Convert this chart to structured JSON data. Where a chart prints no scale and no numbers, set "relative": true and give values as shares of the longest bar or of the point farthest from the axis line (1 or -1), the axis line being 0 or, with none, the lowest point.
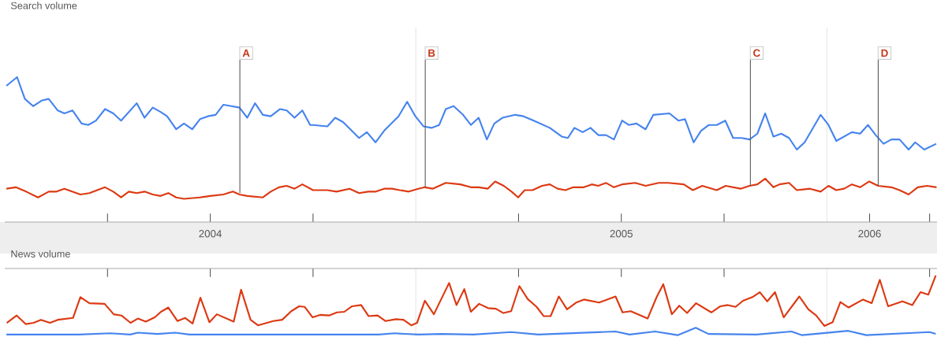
{
  "chart_data": [
    {
      "type": "line",
      "relative": true,
      "title": "Search volume",
      "tick_labels": "x",
      "xlim": [
        2004.0,
        2006.268
      ],
      "xticks": [
        {
          "value": 2004.25,
          "label": null
        },
        {
          "value": 2004.5,
          "label": "2004"
        },
        {
          "value": 2004.75,
          "label": null
        },
        {
          "value": 2005.25,
          "label": null
        },
        {
          "value": 2005.5,
          "label": "2005"
        },
        {
          "value": 2005.75,
          "label": null
        },
        {
          "value": 2006.104,
          "label": "2006"
        },
        {
          "value": 2006.25,
          "label": null
        }
      ],
      "ref_lines": [
        {
          "axis": "x",
          "value": 2005,
          "color": "#cccccc"
        },
        {
          "axis": "x",
          "value": 2006,
          "color": "#cccccc"
        }
      ],
      "annotations": [
        {
          "text": "A",
          "x": 2004.572,
          "y": 0.2
        },
        {
          "text": "B",
          "x": 2005.023,
          "y": 0.24
        },
        {
          "text": "C",
          "x": 2005.814,
          "y": 0.25
        },
        {
          "text": "D",
          "x": 2006.125,
          "y": 0.25
        }
      ],
      "series": [
        {
          "color": "#4684ee",
          "x": [
            2004.004,
            2004.03,
            2004.049,
            2004.069,
            2004.091,
            2004.107,
            2004.129,
            2004.145,
            2004.165,
            2004.187,
            2004.203,
            2004.222,
            2004.244,
            2004.264,
            2004.283,
            2004.321,
            2004.34,
            2004.36,
            2004.379,
            2004.395,
            2004.417,
            2004.436,
            2004.456,
            2004.475,
            2004.494,
            2004.513,
            2004.532,
            2004.551,
            2004.571,
            2004.59,
            2004.609,
            2004.628,
            2004.647,
            2004.67,
            2004.686,
            2004.705,
            2004.724,
            2004.743,
            2004.75,
            2004.785,
            2004.804,
            2004.823,
            2004.862,
            2004.881,
            2004.902,
            2004.923,
            2004.958,
            2004.979,
            2004.999,
            2005.019,
            2005.038,
            2005.057,
            2005.073,
            2005.092,
            2005.115,
            2005.134,
            2005.153,
            2005.173,
            2005.191,
            2005.211,
            2005.242,
            2005.262,
            2005.287,
            2005.326,
            2005.355,
            2005.37,
            2005.386,
            2005.406,
            2005.425,
            2005.444,
            2005.463,
            2005.482,
            2005.502,
            2005.518,
            2005.537,
            2005.559,
            2005.578,
            2005.617,
            2005.639,
            2005.655,
            2005.676,
            2005.694,
            2005.713,
            2005.732,
            2005.753,
            2005.772,
            2005.793,
            2005.812,
            2005.831,
            2005.85,
            2005.87,
            2005.889,
            2005.908,
            2005.927,
            2005.946,
            2005.985,
            2006.004,
            2006.023,
            2006.042,
            2006.061,
            2006.081,
            2006.1,
            2006.119,
            2006.138,
            2006.157,
            2006.177,
            2006.199,
            2006.215,
            2006.237,
            2006.266
          ],
          "values": [
            0.94,
            1.0,
            0.85,
            0.8,
            0.84,
            0.85,
            0.77,
            0.75,
            0.77,
            0.68,
            0.67,
            0.7,
            0.78,
            0.75,
            0.7,
            0.82,
            0.72,
            0.79,
            0.76,
            0.73,
            0.64,
            0.68,
            0.64,
            0.71,
            0.73,
            0.74,
            0.81,
            0.8,
            0.79,
            0.72,
            0.82,
            0.74,
            0.73,
            0.78,
            0.77,
            0.72,
            0.77,
            0.67,
            0.67,
            0.66,
            0.72,
            0.69,
            0.58,
            0.62,
            0.55,
            0.63,
            0.73,
            0.83,
            0.73,
            0.66,
            0.65,
            0.67,
            0.78,
            0.8,
            0.74,
            0.67,
            0.72,
            0.57,
            0.68,
            0.72,
            0.74,
            0.73,
            0.7,
            0.65,
            0.59,
            0.58,
            0.65,
            0.62,
            0.65,
            0.6,
            0.6,
            0.57,
            0.7,
            0.67,
            0.68,
            0.64,
            0.74,
            0.75,
            0.7,
            0.71,
            0.55,
            0.63,
            0.67,
            0.67,
            0.7,
            0.58,
            0.58,
            0.57,
            0.61,
            0.75,
            0.59,
            0.61,
            0.58,
            0.5,
            0.55,
            0.74,
            0.67,
            0.56,
            0.59,
            0.62,
            0.61,
            0.67,
            0.6,
            0.54,
            0.57,
            0.57,
            0.5,
            0.55,
            0.5,
            0.54
          ]
        },
        {
          "color": "#dc3912",
          "x": [
            2004.004,
            2004.027,
            2004.052,
            2004.081,
            2004.107,
            2004.126,
            2004.145,
            2004.164,
            2004.184,
            2004.206,
            2004.225,
            2004.244,
            2004.264,
            2004.283,
            2004.302,
            2004.321,
            2004.34,
            2004.36,
            2004.379,
            2004.398,
            2004.417,
            2004.436,
            2004.475,
            2004.5,
            2004.532,
            2004.555,
            2004.571,
            2004.59,
            2004.628,
            2004.647,
            2004.667,
            2004.686,
            2004.705,
            2004.724,
            2004.75,
            2004.763,
            2004.785,
            2004.807,
            2004.839,
            2004.862,
            2004.884,
            2004.903,
            2004.923,
            2004.942,
            2004.961,
            2004.983,
            2005.006,
            2005.022,
            2005.041,
            2005.073,
            2005.108,
            2005.134,
            2005.153,
            2005.175,
            2005.193,
            2005.214,
            2005.233,
            2005.249,
            2005.265,
            2005.284,
            2005.307,
            2005.326,
            2005.345,
            2005.364,
            2005.383,
            2005.409,
            2005.428,
            2005.444,
            2005.463,
            2005.482,
            2005.502,
            2005.534,
            2005.559,
            2005.591,
            2005.614,
            2005.652,
            2005.674,
            2005.697,
            2005.732,
            2005.754,
            2005.79,
            2005.812,
            2005.831,
            2005.85,
            2005.87,
            2005.885,
            2005.908,
            2005.927,
            2005.959,
            2005.985,
            2006.004,
            2006.023,
            2006.042,
            2006.061,
            2006.081,
            2006.103,
            2006.125,
            2006.157,
            2006.177,
            2006.199,
            2006.221,
            2006.244,
            2006.267
          ],
          "values": [
            0.23,
            0.24,
            0.21,
            0.17,
            0.21,
            0.21,
            0.23,
            0.21,
            0.19,
            0.2,
            0.22,
            0.24,
            0.21,
            0.17,
            0.21,
            0.2,
            0.21,
            0.19,
            0.18,
            0.2,
            0.17,
            0.16,
            0.17,
            0.18,
            0.19,
            0.21,
            0.19,
            0.18,
            0.17,
            0.21,
            0.24,
            0.25,
            0.23,
            0.26,
            0.22,
            0.22,
            0.22,
            0.21,
            0.23,
            0.2,
            0.21,
            0.21,
            0.23,
            0.23,
            0.22,
            0.21,
            0.23,
            0.24,
            0.23,
            0.27,
            0.26,
            0.24,
            0.24,
            0.23,
            0.28,
            0.25,
            0.21,
            0.17,
            0.22,
            0.22,
            0.25,
            0.26,
            0.23,
            0.22,
            0.24,
            0.24,
            0.26,
            0.25,
            0.27,
            0.24,
            0.26,
            0.27,
            0.25,
            0.27,
            0.27,
            0.26,
            0.22,
            0.25,
            0.22,
            0.25,
            0.23,
            0.25,
            0.26,
            0.3,
            0.24,
            0.26,
            0.27,
            0.22,
            0.23,
            0.21,
            0.25,
            0.22,
            0.23,
            0.26,
            0.24,
            0.28,
            0.25,
            0.24,
            0.22,
            0.19,
            0.24,
            0.25,
            0.24
          ]
        }
      ]
    },
    {
      "type": "line",
      "relative": true,
      "title": "News volume",
      "tick_labels": false,
      "xlim": [
        2004.0,
        2006.268
      ],
      "xticks": [
        {
          "value": 2004.25,
          "label": null
        },
        {
          "value": 2004.5,
          "label": null
        },
        {
          "value": 2004.75,
          "label": null
        },
        {
          "value": 2005.25,
          "label": null
        },
        {
          "value": 2005.5,
          "label": null
        },
        {
          "value": 2005.75,
          "label": null
        },
        {
          "value": 2006.25,
          "label": null
        }
      ],
      "ref_lines": [
        {
          "axis": "x",
          "value": 2005,
          "color": "#cccccc"
        },
        {
          "axis": "x",
          "value": 2006,
          "color": "#cccccc"
        }
      ],
      "series": [
        {
          "color": "#dc3912",
          "x": [
            2004.005,
            2004.029,
            2004.051,
            2004.07,
            2004.088,
            2004.11,
            2004.129,
            2004.166,
            2004.184,
            2004.206,
            2004.243,
            2004.265,
            2004.284,
            2004.306,
            2004.324,
            2004.343,
            2004.365,
            2004.38,
            2004.398,
            2004.42,
            2004.439,
            2004.457,
            2004.476,
            2004.498,
            2004.516,
            2004.557,
            2004.575,
            2004.598,
            2004.616,
            2004.653,
            2004.675,
            2004.697,
            2004.716,
            2004.73,
            2004.749,
            2004.767,
            2004.789,
            2004.808,
            2004.826,
            2004.845,
            2004.867,
            2004.885,
            2004.907,
            2004.926,
            2004.952,
            2004.97,
            2004.989,
            2005.003,
            2005.022,
            2005.044,
            2005.081,
            2005.099,
            2005.118,
            2005.134,
            2005.154,
            2005.176,
            2005.195,
            2005.213,
            2005.232,
            2005.252,
            2005.272,
            2005.294,
            2005.311,
            2005.328,
            2005.348,
            2005.368,
            2005.39,
            2005.409,
            2005.446,
            2005.486,
            2005.503,
            2005.523,
            2005.564,
            2005.586,
            2005.602,
            2005.623,
            2005.641,
            2005.66,
            2005.682,
            2005.719,
            2005.741,
            2005.759,
            2005.778,
            2005.796,
            2005.819,
            2005.837,
            2005.855,
            2005.874,
            2005.895,
            2005.933,
            2005.955,
            2005.974,
            2005.994,
            2006.014,
            2006.033,
            2006.053,
            2006.088,
            2006.109,
            2006.129,
            2006.149,
            2006.184,
            2006.208,
            2006.228,
            2006.247,
            2006.265
          ],
          "values": [
            0.23,
            0.35,
            0.21,
            0.23,
            0.28,
            0.23,
            0.28,
            0.31,
            0.65,
            0.55,
            0.54,
            0.37,
            0.35,
            0.23,
            0.3,
            0.25,
            0.32,
            0.41,
            0.48,
            0.26,
            0.31,
            0.22,
            0.64,
            0.24,
            0.37,
            0.25,
            0.77,
            0.28,
            0.19,
            0.26,
            0.28,
            0.42,
            0.5,
            0.49,
            0.32,
            0.36,
            0.35,
            0.4,
            0.41,
            0.5,
            0.52,
            0.34,
            0.35,
            0.26,
            0.29,
            0.28,
            0.19,
            0.23,
            0.59,
            0.37,
            0.88,
            0.52,
            0.78,
            0.41,
            0.54,
            0.47,
            0.46,
            0.39,
            0.42,
            0.83,
            0.62,
            0.49,
            0.34,
            0.34,
            0.66,
            0.45,
            0.56,
            0.61,
            0.56,
            0.66,
            0.4,
            0.42,
            0.3,
            0.65,
            0.86,
            0.37,
            0.51,
            0.39,
            0.55,
            0.4,
            0.5,
            0.52,
            0.49,
            0.59,
            0.65,
            0.73,
            0.58,
            0.73,
            0.32,
            0.66,
            0.45,
            0.35,
            0.18,
            0.24,
            0.57,
            0.48,
            0.61,
            0.55,
            0.93,
            0.5,
            0.58,
            0.52,
            0.73,
            0.69,
            1.0
          ]
        },
        {
          "color": "#4684ee",
          "x": [
            2004.004,
            2004.18,
            2004.257,
            2004.305,
            2004.324,
            2004.372,
            2004.415,
            2004.449,
            2004.756,
            2004.91,
            2004.948,
            2005.006,
            2005.063,
            2005.14,
            2005.232,
            2005.298,
            2005.486,
            2005.52,
            2005.582,
            2005.637,
            2005.681,
            2005.712,
            2005.829,
            2005.914,
            2005.94,
            2006.052,
            2006.096,
            2006.25,
            2006.265
          ],
          "values": [
            0.04,
            0.04,
            0.06,
            0.04,
            0.07,
            0.05,
            0.07,
            0.04,
            0.04,
            0.04,
            0.06,
            0.04,
            0.05,
            0.04,
            0.08,
            0.04,
            0.09,
            0.04,
            0.09,
            0.03,
            0.15,
            0.05,
            0.04,
            0.09,
            0.03,
            0.1,
            0.03,
            0.08,
            0.05
          ]
        }
      ]
    }
  ]
}
